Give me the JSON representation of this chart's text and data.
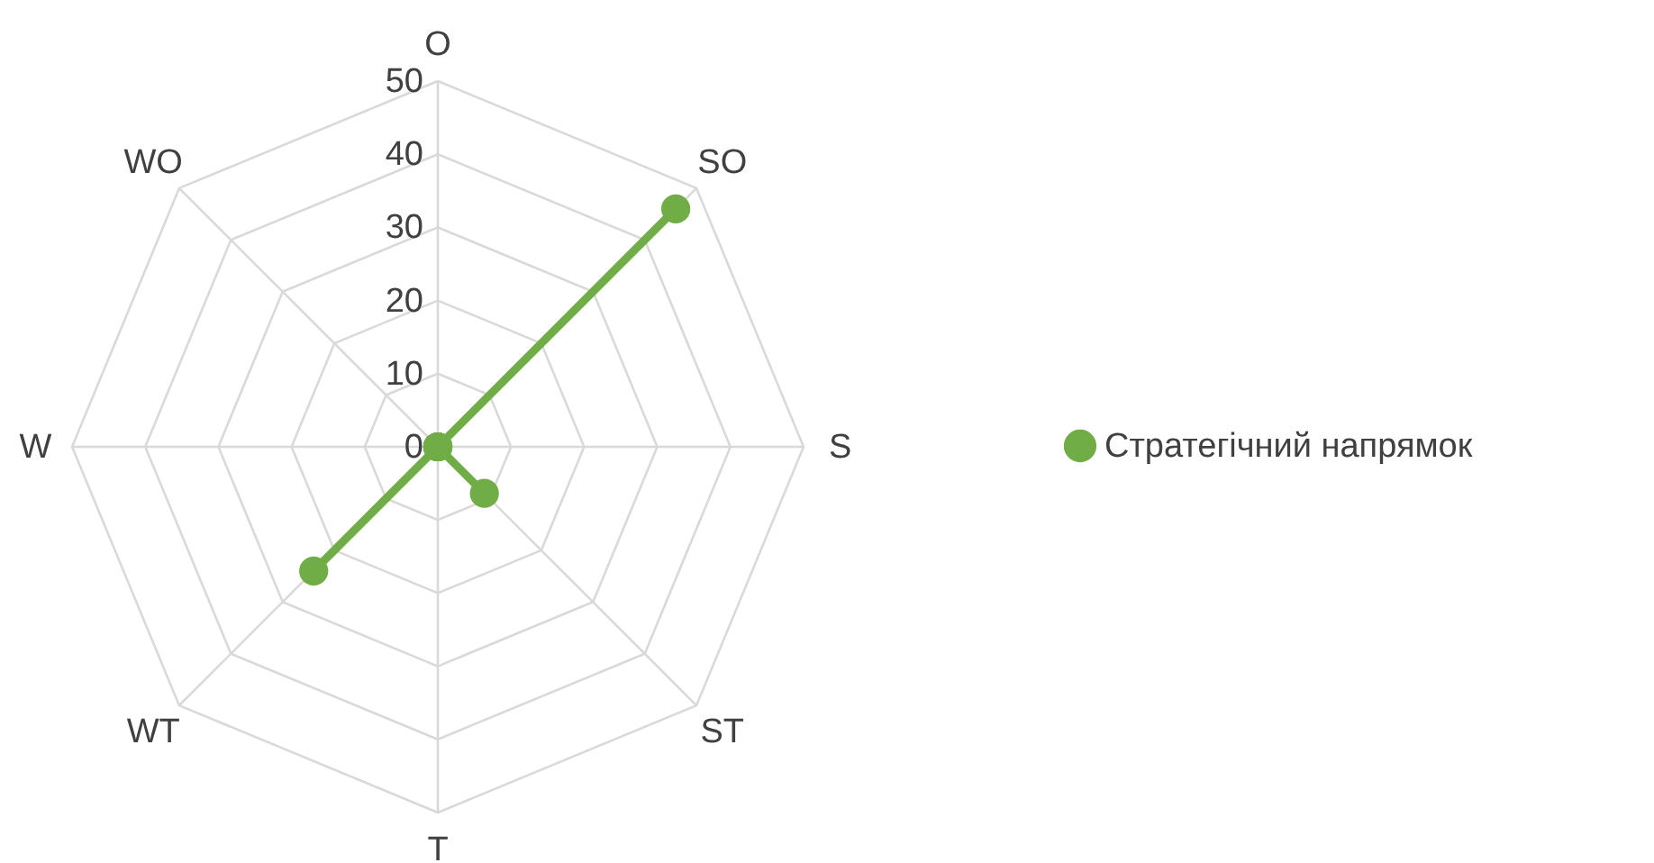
{
  "chart_data": {
    "type": "radar",
    "categories": [
      "O",
      "SO",
      "S",
      "ST",
      "T",
      "WT",
      "W",
      "WO"
    ],
    "series": [
      {
        "name": "Стратегічний напрямок",
        "color": "#70ad47",
        "values": [
          0,
          46,
          0,
          9,
          0,
          24,
          0,
          0
        ]
      }
    ],
    "ylim": [
      0,
      50
    ],
    "yticks": [
      0,
      10,
      20,
      30,
      40,
      50
    ],
    "grid": true,
    "legend": "right",
    "marker": "circle",
    "line_style": "solid"
  }
}
